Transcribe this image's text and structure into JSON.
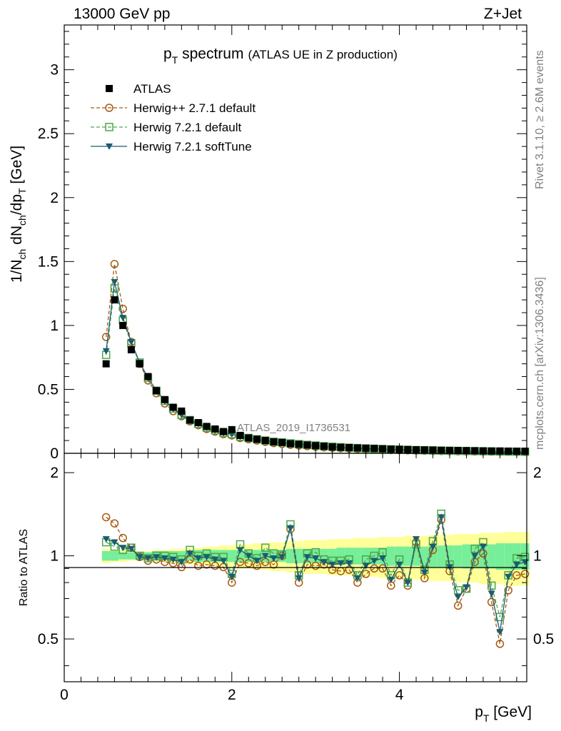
{
  "header": {
    "left": "13000 GeV pp",
    "right": "Z+Jet"
  },
  "side": {
    "upper": "Rivet 3.1.10, ≥ 2.6M events",
    "lower": "mcplots.cern.ch [arXiv:1306.3436]"
  },
  "chart_data": {
    "type": "scatter",
    "title": "p_T spectrum",
    "title_parts": {
      "p": "p",
      "sub": "T",
      "rest": " spectrum",
      "note": "(ATLAS UE in Z production)"
    },
    "watermark": "ATLAS_2019_I1736531",
    "xlabel": "p_T [GeV]",
    "ylabel": "1/N_ch dN_ch/dp_T [GeV]",
    "ratio_ylabel": "Ratio to ATLAS",
    "xlim": [
      0,
      5.5
    ],
    "ylim": [
      0,
      3.35
    ],
    "ratio_ylim": [
      0.35,
      2.35
    ],
    "x_ticks": [
      "0",
      "2",
      "4"
    ],
    "y_ticks": [
      "0",
      "0.5",
      "1",
      "1.5",
      "2",
      "2.5",
      "3"
    ],
    "ratio_ticks": [
      "0.5",
      "1",
      "2"
    ],
    "legend_position": "top-left",
    "x": [
      0.5,
      0.6,
      0.7,
      0.8,
      0.9,
      1.0,
      1.1,
      1.2,
      1.3,
      1.4,
      1.5,
      1.6,
      1.7,
      1.8,
      1.9,
      2.0,
      2.1,
      2.2,
      2.3,
      2.4,
      2.5,
      2.6,
      2.7,
      2.8,
      2.9,
      3.0,
      3.1,
      3.2,
      3.3,
      3.4,
      3.5,
      3.6,
      3.7,
      3.8,
      3.9,
      4.0,
      4.1,
      4.2,
      4.3,
      4.4,
      4.5,
      4.6,
      4.7,
      4.8,
      4.9,
      5.0,
      5.1,
      5.2,
      5.3,
      5.4,
      5.5
    ],
    "series": [
      {
        "name": "ATLAS",
        "color": "#000000",
        "marker": "square",
        "values": [
          0.7,
          1.2,
          1.0,
          0.81,
          0.7,
          0.6,
          0.49,
          0.42,
          0.36,
          0.33,
          0.26,
          0.24,
          0.21,
          0.19,
          0.17,
          0.185,
          0.14,
          0.12,
          0.11,
          0.1,
          0.09,
          0.085,
          0.075,
          0.07,
          0.065,
          0.06,
          0.055,
          0.05,
          0.047,
          0.045,
          0.042,
          0.04,
          0.038,
          0.036,
          0.033,
          0.031,
          0.03,
          0.028,
          0.027,
          0.026,
          0.024,
          0.023,
          0.022,
          0.021,
          0.02,
          0.019,
          0.018,
          0.018,
          0.017,
          0.016,
          0.016
        ],
        "ratio_bands": {
          "stat_low": [
            0.96,
            0.96,
            0.97,
            0.97,
            0.97,
            0.97,
            0.96,
            0.96,
            0.96,
            0.96,
            0.96,
            0.95,
            0.95,
            0.95,
            0.95,
            0.95,
            0.95,
            0.95,
            0.95,
            0.95,
            0.95,
            0.95,
            0.94,
            0.94,
            0.94,
            0.94,
            0.94,
            0.94,
            0.93,
            0.93,
            0.93,
            0.93,
            0.93,
            0.93,
            0.92,
            0.92,
            0.92,
            0.92,
            0.92,
            0.91,
            0.91,
            0.91,
            0.91,
            0.9,
            0.9,
            0.9,
            0.9,
            0.89,
            0.89,
            0.89,
            0.89
          ],
          "stat_high": [
            1.04,
            1.04,
            1.03,
            1.03,
            1.03,
            1.03,
            1.04,
            1.04,
            1.04,
            1.04,
            1.04,
            1.05,
            1.05,
            1.05,
            1.05,
            1.05,
            1.05,
            1.05,
            1.05,
            1.05,
            1.05,
            1.05,
            1.06,
            1.06,
            1.06,
            1.06,
            1.06,
            1.06,
            1.07,
            1.07,
            1.07,
            1.07,
            1.07,
            1.07,
            1.08,
            1.08,
            1.08,
            1.08,
            1.08,
            1.09,
            1.09,
            1.09,
            1.09,
            1.1,
            1.1,
            1.1,
            1.1,
            1.11,
            1.11,
            1.11,
            1.11
          ],
          "tot_low": [
            0.94,
            0.95,
            0.95,
            0.96,
            0.96,
            0.96,
            0.95,
            0.95,
            0.94,
            0.94,
            0.93,
            0.93,
            0.92,
            0.92,
            0.91,
            0.91,
            0.9,
            0.9,
            0.89,
            0.89,
            0.88,
            0.88,
            0.87,
            0.87,
            0.86,
            0.86,
            0.86,
            0.85,
            0.85,
            0.85,
            0.84,
            0.84,
            0.84,
            0.83,
            0.83,
            0.83,
            0.82,
            0.82,
            0.82,
            0.81,
            0.81,
            0.81,
            0.8,
            0.8,
            0.8,
            0.79,
            0.79,
            0.79,
            0.78,
            0.78,
            0.78
          ],
          "tot_high": [
            1.06,
            1.05,
            1.05,
            1.04,
            1.04,
            1.04,
            1.05,
            1.05,
            1.06,
            1.06,
            1.07,
            1.07,
            1.08,
            1.08,
            1.09,
            1.09,
            1.1,
            1.1,
            1.11,
            1.11,
            1.12,
            1.12,
            1.13,
            1.13,
            1.14,
            1.14,
            1.14,
            1.15,
            1.15,
            1.15,
            1.16,
            1.16,
            1.16,
            1.17,
            1.17,
            1.17,
            1.18,
            1.18,
            1.18,
            1.19,
            1.19,
            1.19,
            1.2,
            1.2,
            1.2,
            1.21,
            1.21,
            1.21,
            1.22,
            1.22,
            1.22
          ]
        }
      },
      {
        "name": "Herwig++ 2.7.1 default",
        "color": "#a65912",
        "marker": "circle",
        "line": "dashed",
        "values": [
          0.91,
          1.48,
          1.13,
          0.87,
          0.7,
          0.57,
          0.47,
          0.39,
          0.33,
          0.29,
          0.25,
          0.22,
          0.19,
          0.17,
          0.15,
          0.14,
          0.12,
          0.11,
          0.1,
          0.09,
          0.08,
          0.073,
          0.067,
          0.061,
          0.056,
          0.051,
          0.047,
          0.043,
          0.04,
          0.037,
          0.034,
          0.032,
          0.03,
          0.028,
          0.026,
          0.024,
          0.023,
          0.021,
          0.02,
          0.019,
          0.018,
          0.017,
          0.016,
          0.015,
          0.014,
          0.014,
          0.013,
          0.012,
          0.012,
          0.011,
          0.011
        ],
        "ratio": [
          1.38,
          1.31,
          1.16,
          1.07,
          0.99,
          0.96,
          0.97,
          0.95,
          0.94,
          0.91,
          0.97,
          0.92,
          0.93,
          0.92,
          0.91,
          0.8,
          0.95,
          0.94,
          0.92,
          0.95,
          0.93,
          1.0,
          1.25,
          0.8,
          0.93,
          0.92,
          0.93,
          0.89,
          0.88,
          0.89,
          0.8,
          0.86,
          0.9,
          0.9,
          0.78,
          0.85,
          0.78,
          1.12,
          0.83,
          1.05,
          1.35,
          0.88,
          0.66,
          0.76,
          0.95,
          1.02,
          0.68,
          0.48,
          0.75,
          0.85,
          0.86
        ]
      },
      {
        "name": "Herwig 7.2.1 default",
        "color": "#4ca64c",
        "marker": "square-open",
        "line": "dashed",
        "values": [
          0.77,
          1.29,
          1.04,
          0.86,
          0.71,
          0.59,
          0.49,
          0.41,
          0.35,
          0.3,
          0.26,
          0.23,
          0.2,
          0.18,
          0.16,
          0.15,
          0.13,
          0.12,
          0.11,
          0.1,
          0.09,
          0.085,
          0.078,
          0.072,
          0.066,
          0.061,
          0.056,
          0.052,
          0.048,
          0.044,
          0.041,
          0.038,
          0.036,
          0.033,
          0.031,
          0.029,
          0.027,
          0.025,
          0.024,
          0.022,
          0.021,
          0.02,
          0.019,
          0.018,
          0.017,
          0.016,
          0.015,
          0.014,
          0.013,
          0.013,
          0.012
        ],
        "ratio": [
          1.12,
          1.08,
          1.05,
          1.07,
          1.0,
          0.98,
          1.0,
          1.0,
          0.99,
          0.97,
          1.05,
          1.0,
          1.02,
          0.99,
          0.99,
          0.86,
          1.1,
          1.02,
          0.98,
          1.07,
          1.02,
          1.01,
          1.3,
          0.85,
          1.02,
          1.03,
          0.97,
          0.96,
          0.96,
          0.97,
          0.85,
          0.97,
          1.0,
          1.03,
          0.85,
          0.97,
          0.8,
          1.1,
          0.89,
          1.13,
          1.42,
          0.93,
          0.75,
          0.76,
          1.06,
          1.12,
          0.78,
          0.6,
          0.85,
          0.98,
          0.99
        ]
      },
      {
        "name": "Herwig 7.2.1 softTune",
        "color": "#1a5c70",
        "marker": "triangle-down",
        "line": "solid",
        "values": [
          0.8,
          1.34,
          1.06,
          0.87,
          0.71,
          0.59,
          0.49,
          0.41,
          0.35,
          0.3,
          0.26,
          0.23,
          0.2,
          0.18,
          0.16,
          0.15,
          0.13,
          0.12,
          0.11,
          0.1,
          0.09,
          0.084,
          0.077,
          0.071,
          0.065,
          0.06,
          0.055,
          0.051,
          0.047,
          0.043,
          0.04,
          0.037,
          0.035,
          0.032,
          0.03,
          0.028,
          0.026,
          0.025,
          0.023,
          0.022,
          0.02,
          0.019,
          0.018,
          0.017,
          0.016,
          0.016,
          0.015,
          0.014,
          0.013,
          0.012,
          0.012
        ],
        "ratio": [
          1.15,
          1.12,
          1.07,
          1.06,
          0.99,
          0.98,
          0.99,
          0.98,
          0.97,
          0.95,
          1.02,
          0.98,
          0.99,
          0.97,
          0.96,
          0.84,
          1.05,
          1.0,
          0.96,
          1.0,
          0.98,
          0.99,
          1.26,
          0.83,
          0.99,
          0.98,
          0.95,
          0.93,
          0.94,
          0.94,
          0.83,
          0.92,
          0.96,
          0.98,
          0.82,
          0.93,
          0.8,
          1.15,
          0.87,
          1.08,
          1.38,
          0.91,
          0.71,
          0.77,
          1.0,
          1.08,
          0.73,
          0.53,
          0.84,
          0.93,
          0.95
        ]
      }
    ]
  }
}
